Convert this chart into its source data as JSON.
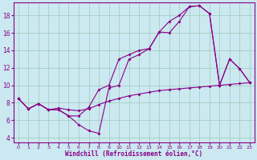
{
  "xlabel": "Windchill (Refroidissement éolien,°C)",
  "bg_color": "#cce8f0",
  "line_color": "#880088",
  "grid_color": "#99ccbb",
  "xlim": [
    -0.5,
    23.5
  ],
  "ylim": [
    3.5,
    19.5
  ],
  "xticks": [
    0,
    1,
    2,
    3,
    4,
    5,
    6,
    7,
    8,
    9,
    10,
    11,
    12,
    13,
    14,
    15,
    16,
    17,
    18,
    19,
    20,
    21,
    22,
    23
  ],
  "yticks": [
    4,
    6,
    8,
    10,
    12,
    14,
    16,
    18
  ],
  "series": [
    {
      "x": [
        0,
        1,
        2,
        3,
        4,
        5,
        6,
        7,
        8,
        9,
        10,
        11,
        12,
        13,
        14,
        15,
        16,
        17,
        18,
        19,
        20,
        21,
        22,
        23
      ],
      "y": [
        8.5,
        7.3,
        7.9,
        7.2,
        7.2,
        6.5,
        5.5,
        4.8,
        4.5,
        9.7,
        10.0,
        13.0,
        13.5,
        14.2,
        16.1,
        16.0,
        17.3,
        19.0,
        19.1,
        18.2,
        10.0,
        13.0,
        11.9,
        10.3
      ]
    },
    {
      "x": [
        0,
        1,
        2,
        3,
        4,
        5,
        6,
        7,
        8,
        9,
        10,
        11,
        12,
        13,
        14,
        15,
        16,
        17,
        18,
        19,
        20,
        21,
        22,
        23
      ],
      "y": [
        8.5,
        7.3,
        7.9,
        7.2,
        7.4,
        7.2,
        7.1,
        7.3,
        7.8,
        8.2,
        8.5,
        8.8,
        9.0,
        9.2,
        9.4,
        9.5,
        9.6,
        9.7,
        9.8,
        9.9,
        10.0,
        10.1,
        10.2,
        10.3
      ]
    },
    {
      "x": [
        0,
        1,
        2,
        3,
        4,
        5,
        6,
        7,
        8,
        9,
        10,
        11,
        12,
        13,
        14,
        15,
        16,
        17,
        18,
        19,
        20,
        21,
        22,
        23
      ],
      "y": [
        8.5,
        7.3,
        7.9,
        7.2,
        7.2,
        6.5,
        6.5,
        7.5,
        9.5,
        10.0,
        13.0,
        13.5,
        14.0,
        14.2,
        16.1,
        17.3,
        18.0,
        19.0,
        19.1,
        18.2,
        10.0,
        13.0,
        11.9,
        10.3
      ]
    }
  ]
}
